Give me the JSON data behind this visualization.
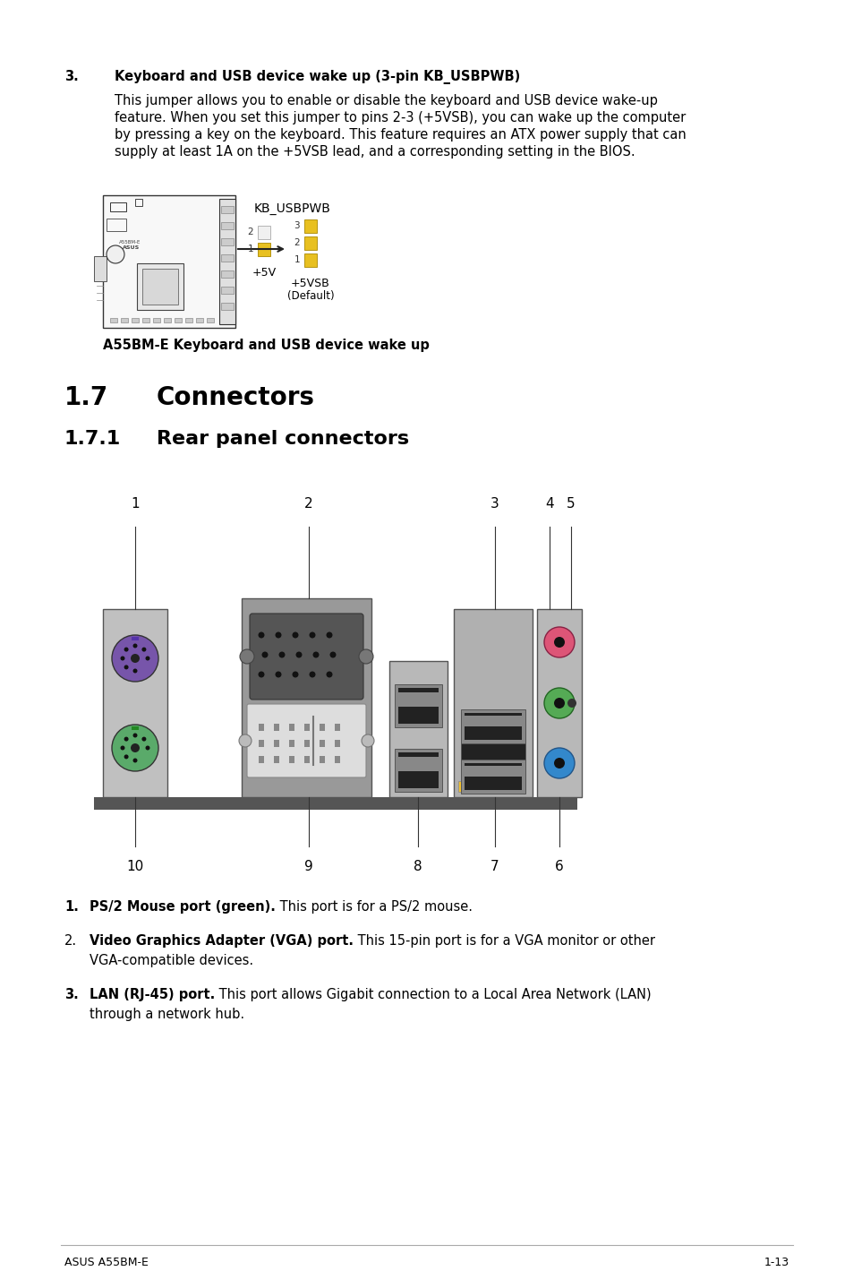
{
  "background_color": "#ffffff",
  "text_color": "#000000",
  "section3_heading": "3.",
  "section3_title": "Keyboard and USB device wake up (3-pin KB_USBPWB)",
  "section3_body_lines": [
    "This jumper allows you to enable or disable the keyboard and USB device wake-up",
    "feature. When you set this jumper to pins 2-3 (+5VSB), you can wake up the computer",
    "by pressing a key on the keyboard. This feature requires an ATX power supply that can",
    "supply at least 1A on the +5VSB lead, and a corresponding setting in the BIOS."
  ],
  "diagram_caption": "A55BM-E Keyboard and USB device wake up",
  "section17_num": "1.7",
  "section17_title": "Connectors",
  "section171_num": "1.7.1",
  "section171_title": "Rear panel connectors",
  "item1_num": "1.",
  "item1_bold": "PS/2 Mouse port (green).",
  "item1_text": " This port is for a PS/2 mouse.",
  "item2_num": "2.",
  "item2_bold": "Video Graphics Adapter (VGA) port.",
  "item2_text": " This 15-pin port is for a VGA monitor or other",
  "item2_text2": "VGA-compatible devices.",
  "item3_num": "3.",
  "item3_bold": "LAN (RJ-45) port.",
  "item3_text": " This port allows Gigabit connection to a Local Area Network (LAN)",
  "item3_text2": "through a network hub.",
  "footer_left": "ASUS A55BM-E",
  "footer_right": "1-13",
  "green_color": "#5aaa6a",
  "purple_color": "#7755aa",
  "blue_color": "#3388cc",
  "green2_color": "#55aa55",
  "pink_color": "#dd5577",
  "yellow_color": "#e8c020",
  "yellow2_color": "#f0c030"
}
